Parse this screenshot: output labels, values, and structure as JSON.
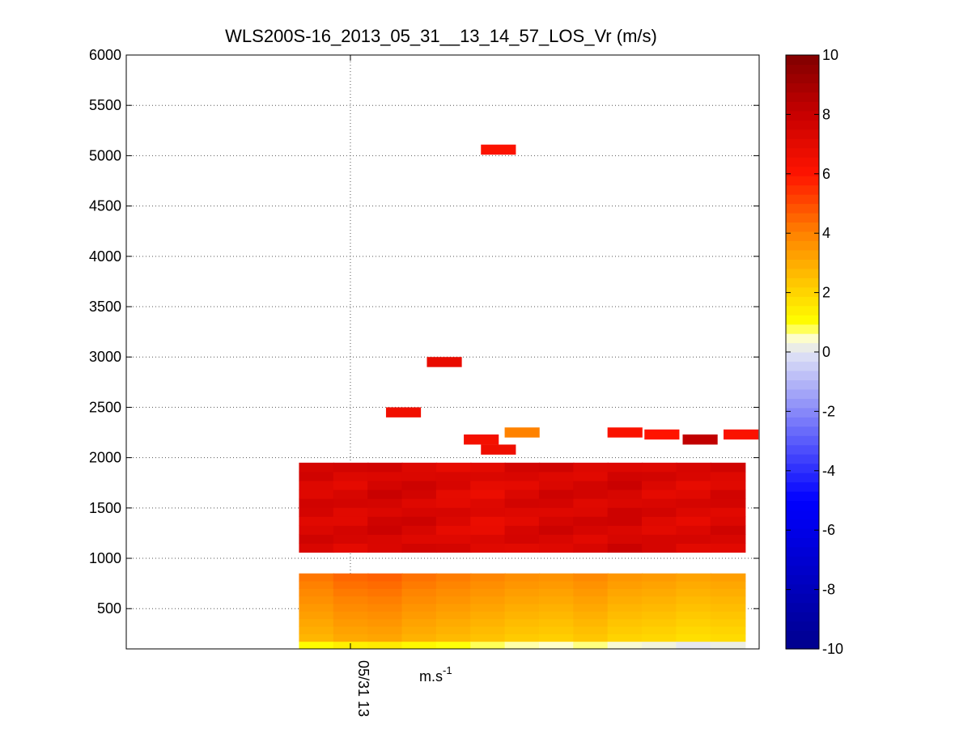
{
  "chart_data": {
    "type": "heatmap",
    "title": "WLS200S-16_2013_05_31__13_14_57_LOS_Vr (m/s)",
    "xlabel": "m.s",
    "xlabel_sup": "-1",
    "x_tick_label": "05/31 13",
    "ylabel": "",
    "ylim": [
      100,
      6000
    ],
    "y_ticks": [
      500,
      1000,
      1500,
      2000,
      2500,
      3000,
      3500,
      4000,
      4500,
      5000,
      5500,
      6000
    ],
    "x_range_hours": [
      12.83,
      13.31
    ],
    "x_tick_hour": 13.0,
    "grid": true,
    "colorbar": {
      "range": [
        -10,
        10
      ],
      "ticks": [
        -10,
        -8,
        -6,
        -4,
        -2,
        0,
        2,
        4,
        6,
        8,
        10
      ],
      "colormap": "blue-white-yellow-red"
    },
    "profile_start_hours": [
      12.961,
      12.987,
      13.013,
      13.039,
      13.065,
      13.091,
      13.117,
      13.143,
      13.169,
      13.195,
      13.221,
      13.247,
      13.273
    ],
    "profile_width_hours": 0.0265,
    "layers": [
      {
        "name": "boundary-layer",
        "y_range": [
          100,
          850
        ],
        "values": [
          4.2,
          4.5,
          4.6,
          4.3,
          4.1,
          3.9,
          3.7,
          3.6,
          3.8,
          3.5,
          3.4,
          3.2,
          3.3
        ]
      },
      {
        "name": "upper-layer",
        "y_range": [
          1060,
          1950
        ],
        "values": [
          7.4,
          7.3,
          7.6,
          7.5,
          7.2,
          7.0,
          7.3,
          7.5,
          7.4,
          7.6,
          7.3,
          7.2,
          7.4
        ]
      }
    ],
    "isolated_points": [
      {
        "t": 13.027,
        "y": 2450,
        "v": 6.5
      },
      {
        "t": 13.058,
        "y": 2950,
        "v": 6.8
      },
      {
        "t": 13.086,
        "y": 2180,
        "v": 6.4
      },
      {
        "t": 13.099,
        "y": 5060,
        "v": 6.1
      },
      {
        "t": 13.099,
        "y": 2080,
        "v": 6.6
      },
      {
        "t": 13.117,
        "y": 2250,
        "v": 4.0
      },
      {
        "t": 13.195,
        "y": 2250,
        "v": 6.2
      },
      {
        "t": 13.223,
        "y": 2230,
        "v": 6.0
      },
      {
        "t": 13.252,
        "y": 2180,
        "v": 8.2
      },
      {
        "t": 13.283,
        "y": 2230,
        "v": 6.2
      }
    ]
  }
}
